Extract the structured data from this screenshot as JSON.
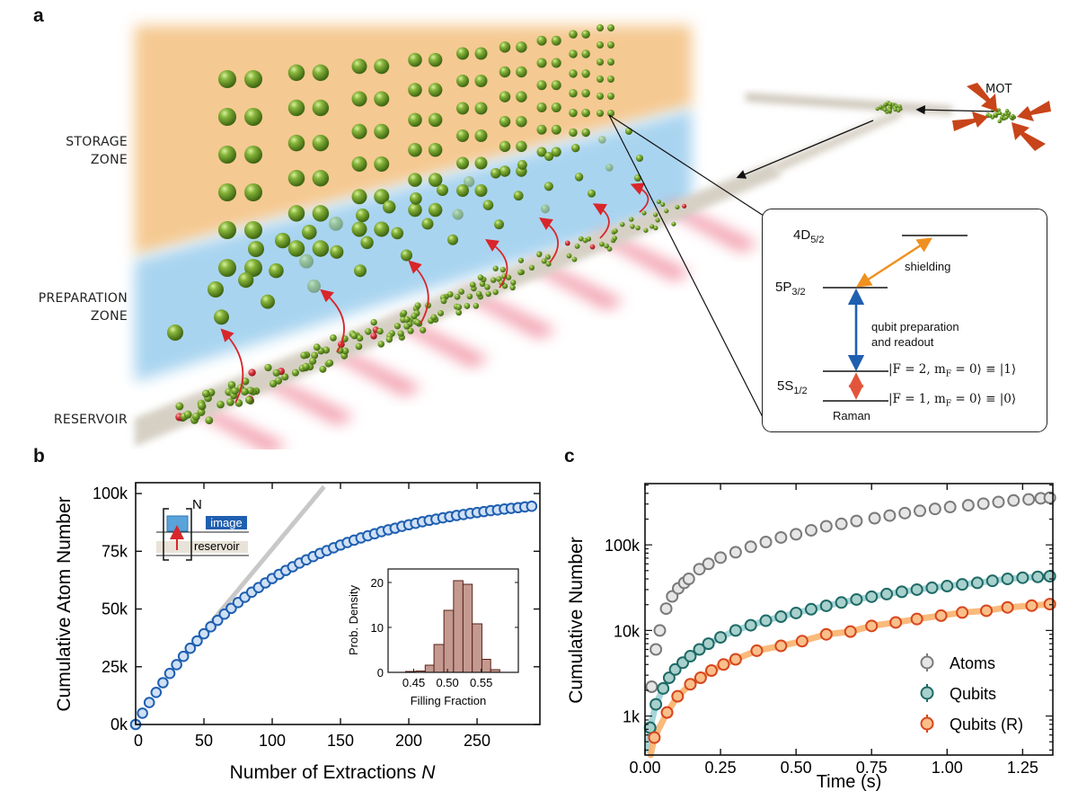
{
  "panel_a": {
    "letter": "a",
    "zones": {
      "storage": [
        "STORAGE",
        "ZONE"
      ],
      "preparation": [
        "PREPARATION",
        "ZONE"
      ],
      "reservoir": "RESERVOIR"
    },
    "mot_label": "MOT",
    "colors": {
      "storage_zone": "#f5c992",
      "preparation_zone": "#a9d4f0",
      "atom": "#5e8a1e",
      "transfer_arrow": "#d8262b",
      "mot_beam_arrow": "#c8441a"
    },
    "level_diagram": {
      "levels": [
        {
          "base": "4D",
          "sub": "5/2"
        },
        {
          "base": "5P",
          "sub": "3/2"
        },
        {
          "base": "5S",
          "sub": "1/2"
        }
      ],
      "transitions": {
        "shielding": "shielding",
        "qubit_prep_1": "qubit preparation",
        "qubit_prep_2": "and readout",
        "raman": "Raman"
      },
      "kets": [
        {
          "pre": "|F = 2, m",
          "sub": "F",
          "post": " = 0⟩ ≡ |1⟩"
        },
        {
          "pre": "|F = 1, m",
          "sub": "F",
          "post": " = 0⟩ ≡ |0⟩"
        }
      ],
      "colors": {
        "shielding": "#f0901e",
        "qubit": "#1f5fb0",
        "raman": "#e2553a"
      }
    }
  },
  "chart_data": [
    {
      "panel": "b",
      "type": "scatter",
      "xlabel": "Number of Extractions N",
      "ylabel": "Cumulative Atom Number",
      "xlim": [
        0,
        296
      ],
      "ylim": [
        0,
        104700
      ],
      "xticks": [
        0,
        50,
        100,
        150,
        200,
        250
      ],
      "xtick_labels": [
        "0",
        "50",
        "100",
        "150",
        "200",
        "250"
      ],
      "yticks": [
        0,
        25000,
        50000,
        75000,
        100000
      ],
      "ytick_labels": [
        "0k",
        "25k",
        "50k",
        "75k",
        "100k"
      ],
      "grid": false,
      "marker_color": "#1f5fb0",
      "marker_fill": "#cfe0f5",
      "series": [
        {
          "x": [
            0,
            5,
            10,
            15,
            20,
            25,
            30,
            35,
            40,
            45,
            50,
            55,
            60,
            65,
            70,
            75,
            80,
            85,
            90,
            95,
            100,
            105,
            110,
            115,
            120,
            125,
            130,
            135,
            140,
            145,
            150,
            155,
            160,
            165,
            170,
            175,
            180,
            185,
            190,
            195,
            200,
            205,
            210,
            215,
            220,
            225,
            230,
            235,
            240,
            245,
            250,
            255,
            260,
            265,
            270,
            275,
            280,
            285,
            290
          ],
          "y": [
            0,
            4900,
            9500,
            13900,
            18100,
            22100,
            25900,
            29500,
            33000,
            36200,
            39300,
            42300,
            45100,
            47800,
            50300,
            52800,
            55100,
            57300,
            59300,
            61300,
            63200,
            65000,
            66700,
            68300,
            69900,
            71300,
            72700,
            74100,
            75300,
            76500,
            77700,
            78800,
            79800,
            80800,
            81700,
            82600,
            83500,
            84300,
            85000,
            85800,
            86500,
            87100,
            87800,
            88400,
            88900,
            89500,
            90000,
            90500,
            90900,
            91400,
            91800,
            92200,
            92600,
            92900,
            93300,
            93600,
            93900,
            94200,
            94500
          ]
        }
      ],
      "reference_line": {
        "x": [
          55,
          138
        ],
        "y": [
          44000,
          103000
        ],
        "color": "#c8c8c8"
      },
      "schematic": {
        "repeat": "N",
        "image": "image",
        "reservoir": "reservoir"
      },
      "inset": {
        "type": "bar",
        "xlabel": "Filling Fraction",
        "ylabel": "Prob. Density",
        "xlim": [
          0.412,
          0.605
        ],
        "ylim": [
          0,
          23
        ],
        "xticks": [
          0.45,
          0.5,
          0.55
        ],
        "xtick_labels": [
          "0.45",
          "0.50",
          "0.55"
        ],
        "yticks": [
          0,
          10,
          20
        ],
        "ytick_labels": [
          "0",
          "10",
          "20"
        ],
        "bin_edges": [
          0.438,
          0.4535,
          0.467,
          0.48,
          0.4947,
          0.509,
          0.523,
          0.5367,
          0.551,
          0.564,
          0.5774
        ],
        "values": [
          0.2,
          0.3,
          1.6,
          6.2,
          13.8,
          20.4,
          19.6,
          10.8,
          2.9,
          0.6
        ],
        "bar_color": "#c49a90",
        "edge_color": "#5a2018"
      }
    },
    {
      "panel": "c",
      "type": "scatter",
      "xlabel": "Time (s)",
      "ylabel": "Cumulative Number",
      "xlim": [
        0,
        1.35
      ],
      "ylim": [
        350,
        520000
      ],
      "yscale": "log",
      "xticks": [
        0,
        0.25,
        0.5,
        0.75,
        1.0,
        1.25
      ],
      "xtick_labels": [
        "0.00",
        "0.25",
        "0.50",
        "0.75",
        "1.00",
        "1.25"
      ],
      "yticks": [
        1000,
        10000,
        100000
      ],
      "ytick_labels": [
        "1k",
        "10k",
        "100k"
      ],
      "grid": false,
      "legend_position": "bottom-right",
      "series": [
        {
          "name": "Atoms",
          "edge": "#7a7a7a",
          "fill": "#e6e6e6",
          "fit": null,
          "x": [
            0.022,
            0.036,
            0.049,
            0.07,
            0.09,
            0.11,
            0.13,
            0.145,
            0.18,
            0.21,
            0.25,
            0.3,
            0.35,
            0.4,
            0.45,
            0.5,
            0.55,
            0.6,
            0.65,
            0.7,
            0.76,
            0.81,
            0.86,
            0.91,
            0.96,
            1.01,
            1.07,
            1.12,
            1.17,
            1.22,
            1.27,
            1.31,
            1.34
          ],
          "y": [
            2200,
            6000,
            10000,
            18000,
            25000,
            31000,
            36000,
            40000,
            52000,
            60000,
            71000,
            82000,
            95000,
            108000,
            122000,
            133000,
            148000,
            165000,
            176000,
            190000,
            205000,
            220000,
            235000,
            250000,
            263000,
            277000,
            290000,
            303000,
            317000,
            330000,
            340000,
            350000,
            355000
          ]
        },
        {
          "name": "Qubits",
          "edge": "#1e6a66",
          "fill": "#a8d0cc",
          "fit": "#9cd0d4",
          "x": [
            0.017,
            0.036,
            0.06,
            0.08,
            0.1,
            0.125,
            0.15,
            0.18,
            0.21,
            0.25,
            0.3,
            0.35,
            0.4,
            0.45,
            0.5,
            0.55,
            0.6,
            0.65,
            0.7,
            0.75,
            0.8,
            0.85,
            0.9,
            0.95,
            1.0,
            1.05,
            1.1,
            1.15,
            1.2,
            1.25,
            1.3,
            1.34
          ],
          "y": [
            730,
            1370,
            2100,
            2800,
            3500,
            4200,
            5000,
            6000,
            7000,
            8300,
            10000,
            11500,
            13000,
            14500,
            16000,
            17700,
            19400,
            21200,
            23000,
            24800,
            26600,
            28300,
            30000,
            31500,
            33000,
            34500,
            36000,
            38000,
            40000,
            41300,
            42300,
            43000
          ]
        },
        {
          "name": "Qubits (R)",
          "edge": "#d8461c",
          "fill": "#f9bf8a",
          "fit": "#f9b36e",
          "x": [
            0.031,
            0.073,
            0.108,
            0.15,
            0.184,
            0.22,
            0.26,
            0.3,
            0.37,
            0.45,
            0.52,
            0.6,
            0.68,
            0.75,
            0.83,
            0.9,
            0.98,
            1.05,
            1.13,
            1.2,
            1.28,
            1.34
          ],
          "y": [
            560,
            1100,
            1700,
            2350,
            2800,
            3400,
            4000,
            4600,
            5800,
            6600,
            7500,
            9000,
            9700,
            11300,
            12400,
            13600,
            14900,
            16200,
            17000,
            18600,
            19500,
            20300
          ]
        }
      ]
    }
  ]
}
